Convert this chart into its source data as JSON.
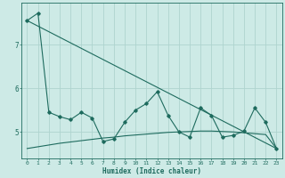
{
  "xlabel": "Humidex (Indice chaleur)",
  "ylabel": "",
  "bg_color": "#cdeae6",
  "grid_color": "#aed4cf",
  "line_color": "#1e6b5e",
  "xlim": [
    -0.5,
    23.5
  ],
  "ylim": [
    4.4,
    7.95
  ],
  "yticks": [
    5,
    6,
    7
  ],
  "xticks": [
    0,
    1,
    2,
    3,
    4,
    5,
    6,
    7,
    8,
    9,
    10,
    11,
    12,
    13,
    14,
    15,
    16,
    17,
    18,
    19,
    20,
    21,
    22,
    23
  ],
  "line1_x": [
    0,
    1,
    2,
    3,
    4,
    5,
    6,
    7,
    8,
    9,
    10,
    11,
    12,
    13,
    14,
    15,
    16,
    17,
    18,
    19,
    20,
    21,
    22,
    23
  ],
  "line1_y": [
    7.55,
    7.72,
    5.45,
    5.35,
    5.28,
    5.45,
    5.32,
    4.78,
    4.84,
    5.22,
    5.5,
    5.65,
    5.92,
    5.38,
    5.0,
    4.88,
    5.55,
    5.38,
    4.88,
    4.92,
    5.02,
    5.55,
    5.22,
    4.62
  ],
  "line2_x": [
    0,
    1,
    2,
    3,
    4,
    5,
    6,
    7,
    8,
    9,
    10,
    11,
    12,
    13,
    14,
    15,
    16,
    17,
    18,
    19,
    20,
    21,
    22,
    23
  ],
  "line2_y": [
    4.62,
    4.66,
    4.7,
    4.74,
    4.77,
    4.8,
    4.83,
    4.86,
    4.88,
    4.91,
    4.93,
    4.95,
    4.97,
    4.99,
    5.0,
    5.01,
    5.02,
    5.02,
    5.01,
    5.0,
    4.98,
    4.96,
    4.94,
    4.62
  ],
  "line3_x": [
    0,
    23
  ],
  "line3_y": [
    7.55,
    4.62
  ]
}
